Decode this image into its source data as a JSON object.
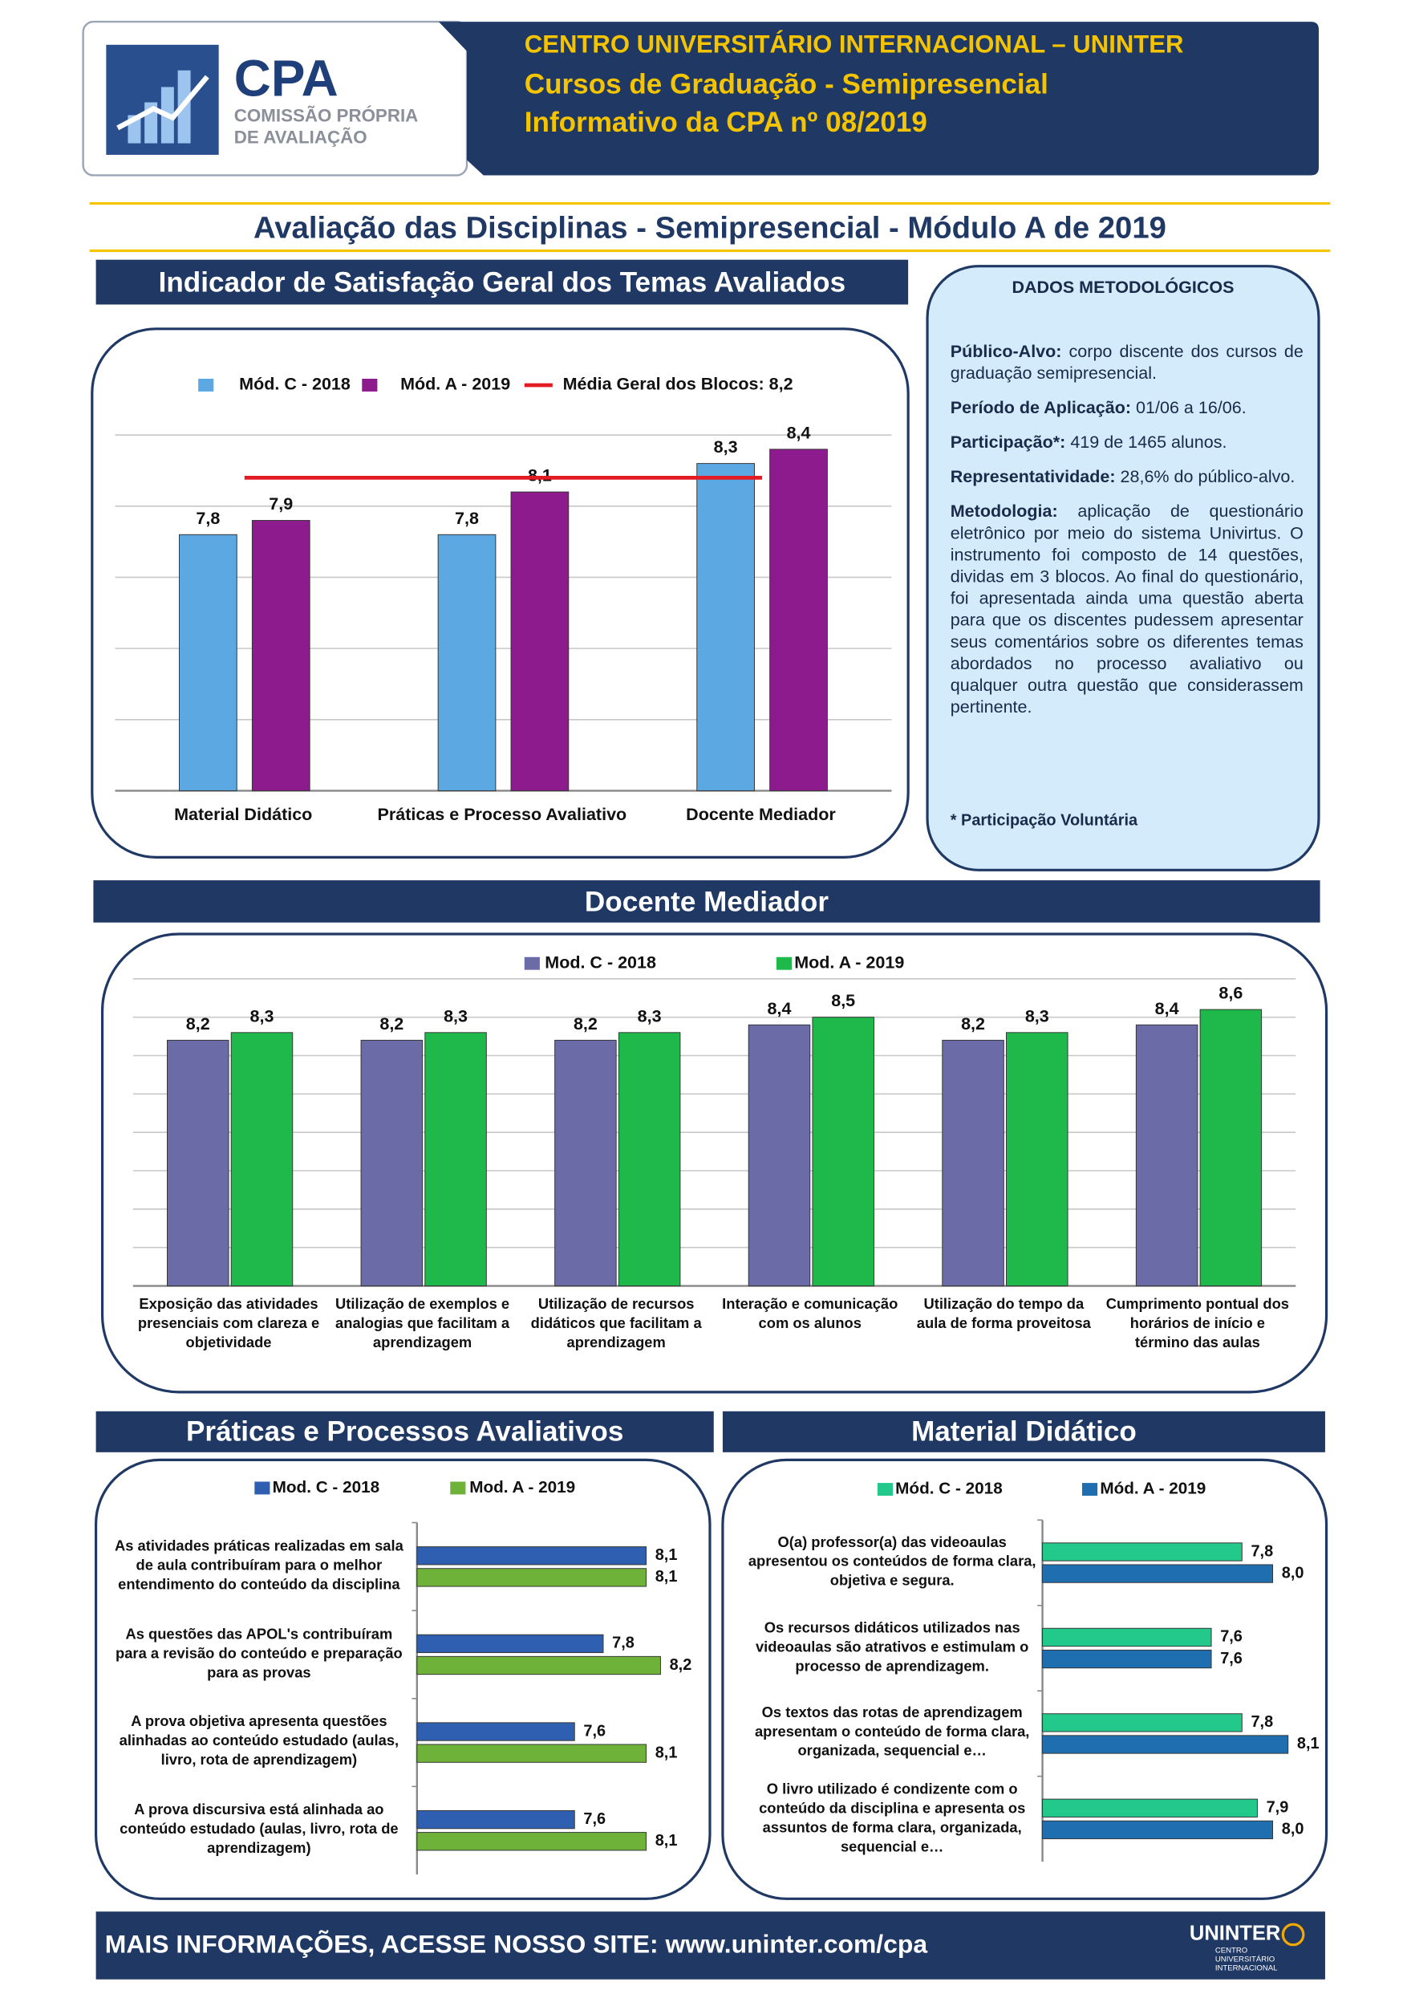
{
  "header": {
    "org": "CENTRO UNIVERSITÁRIO INTERNACIONAL – UNINTER",
    "course": "Cursos de Graduação - Semipresencial",
    "issue": "Informativo da CPA nº 08/2019"
  },
  "logo": {
    "acronym": "CPA",
    "line1": "COMISSÃO PRÓPRIA",
    "line2": "DE AVALIAÇÃO"
  },
  "page_title": "Avaliação das Disciplinas - Semipresencial - Módulo A de 2019",
  "methodology": {
    "heading": "DADOS METODOLÓGICOS",
    "items": [
      {
        "label": "Público-Alvo:",
        "text": "corpo discente dos cursos de graduação semipresencial."
      },
      {
        "label": "Período de Aplicação:",
        "text": "01/06 a 16/06."
      },
      {
        "label": "Participação*:",
        "text": "419 de 1465 alunos."
      },
      {
        "label": "Representatividade:",
        "text": "28,6% do público-alvo."
      },
      {
        "label": "Metodologia:",
        "text": "aplicação de questionário eletrônico por meio do sistema Univirtus. O instrumento foi composto de 14 questões, dividas em 3 blocos. Ao final do questionário, foi apresentada ainda uma questão aberta para que os discentes pudessem apresentar seus comentários sobre os diferentes temas abordados no processo avaliativo ou qualquer outra questão que considerassem pertinente."
      }
    ],
    "note": "* Participação Voluntária"
  },
  "chart_data": [
    {
      "type": "bar",
      "title": "Indicador de Satisfação Geral dos Temas Avaliados",
      "categories": [
        "Material Didático",
        "Práticas e Processo Avaliativo",
        "Docente Mediador"
      ],
      "series": [
        {
          "name": "Mód. C - 2018",
          "color": "#5ba8e3",
          "values": [
            7.8,
            7.8,
            8.3
          ],
          "value_labels": [
            "7,8",
            "7,8",
            "8,3"
          ]
        },
        {
          "name": "Mód. A - 2019",
          "color": "#8e1b8e",
          "values": [
            7.9,
            8.1,
            8.4
          ],
          "value_labels": [
            "7,9",
            "8,1",
            "8,4"
          ]
        }
      ],
      "reference_line": {
        "name": "Média Geral dos Blocos: 8,2",
        "value": 8.2,
        "color": "#e31b23"
      },
      "ylim": [
        6,
        8.5
      ],
      "yticks": [
        6,
        6.5,
        7,
        7.5,
        8,
        8.5
      ],
      "grid": true
    },
    {
      "type": "bar",
      "title": "Docente Mediador",
      "categories": [
        "Exposição das atividades presenciais com clareza e objetividade",
        "Utilização de exemplos e analogias que facilitam a aprendizagem",
        "Utilização de recursos didáticos que facilitam a aprendizagem",
        "Interação e comunicação com os alunos",
        "Utilização do tempo da aula de forma proveitosa",
        "Cumprimento pontual dos horários de início e término das aulas"
      ],
      "series": [
        {
          "name": "Mod. C - 2018",
          "color": "#6b6ba8",
          "values": [
            8.2,
            8.2,
            8.2,
            8.4,
            8.2,
            8.4
          ],
          "value_labels": [
            "8,2",
            "8,2",
            "8,2",
            "8,4",
            "8,2",
            "8,4"
          ]
        },
        {
          "name": "Mod. A - 2019",
          "color": "#1fb84a",
          "values": [
            8.3,
            8.3,
            8.3,
            8.5,
            8.3,
            8.6
          ],
          "value_labels": [
            "8,3",
            "8,3",
            "8,3",
            "8,5",
            "8,3",
            "8,6"
          ]
        }
      ],
      "ylim": [
        5,
        9
      ],
      "yticks": [
        5,
        5.5,
        6,
        6.5,
        7,
        7.5,
        8,
        8.5,
        9
      ],
      "grid": true
    },
    {
      "type": "bar",
      "horizontal": true,
      "title": "Práticas e Processos Avaliativos",
      "categories": [
        "As atividades práticas realizadas em sala de aula contribuíram para o melhor entendimento do conteúdo da disciplina",
        "As questões das APOL's contribuíram para a revisão do conteúdo e preparação para as provas",
        "A prova objetiva apresenta questões alinhadas ao conteúdo estudado (aulas, livro, rota de aprendizagem)",
        "A prova discursiva está alinhada ao conteúdo estudado (aulas, livro, rota de aprendizagem)"
      ],
      "series": [
        {
          "name": "Mod. C - 2018",
          "color": "#2e5fb0",
          "values": [
            8.1,
            7.8,
            7.6,
            7.6
          ],
          "value_labels": [
            "8,1",
            "7,8",
            "7,6",
            "7,6"
          ]
        },
        {
          "name": "Mod. A - 2019",
          "color": "#6fb23a",
          "values": [
            8.1,
            8.2,
            8.1,
            8.1
          ],
          "value_labels": [
            "8,1",
            "8,2",
            "8,1",
            "8,1"
          ]
        }
      ],
      "xlim": [
        6.5,
        8.5
      ],
      "grid": false
    },
    {
      "type": "bar",
      "horizontal": true,
      "title": "Material Didático",
      "categories": [
        "O(a) professor(a) das videoaulas apresentou os conteúdos de forma clara, objetiva e segura.",
        "Os recursos didáticos utilizados nas videoaulas são atrativos e estimulam o processo de aprendizagem.",
        "Os textos das rotas de aprendizagem apresentam o conteúdo de forma clara, organizada, sequencial e…",
        "O livro utilizado é condizente com o conteúdo da disciplina e apresenta os assuntos de forma clara, organizada, sequencial e…"
      ],
      "series": [
        {
          "name": "Mód. C - 2018",
          "color": "#22c98a",
          "values": [
            7.8,
            7.6,
            7.8,
            7.9
          ],
          "value_labels": [
            "7,8",
            "7,6",
            "7,8",
            "7,9"
          ]
        },
        {
          "name": "Mód. A - 2019",
          "color": "#1f6fb0",
          "values": [
            8.0,
            7.6,
            8.1,
            8.0
          ],
          "value_labels": [
            "8,0",
            "7,6",
            "8,1",
            "8,0"
          ]
        }
      ],
      "xlim": [
        6.5,
        8.2
      ],
      "grid": false
    }
  ],
  "footer": {
    "text": "MAIS INFORMAÇÕES, ACESSE NOSSO SITE: www.uninter.com/cpa",
    "brand": "UNINTER",
    "brand_sub": "CENTRO UNIVERSITÁRIO INTERNACIONAL"
  }
}
